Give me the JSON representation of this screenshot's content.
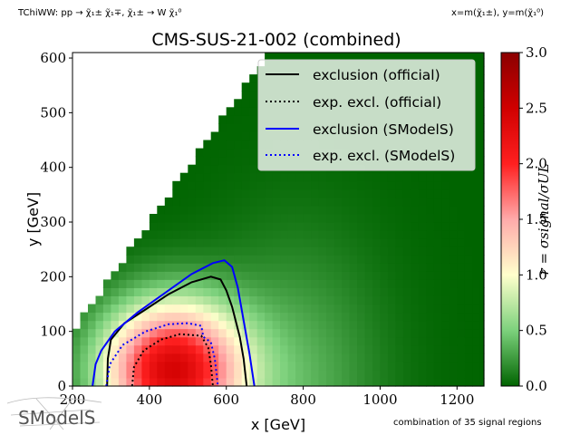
{
  "header": {
    "process": "TChiWW: pp → χ̃₁± χ̃₁∓, χ̃₁± → W χ̃₁⁰",
    "axes_def": "x=m(χ̃₁±), y=m(χ̃₁⁰)"
  },
  "footer": {
    "signal_regions": "combination of 35 signal regions",
    "logo_text": "SModelS"
  },
  "chart_data": {
    "type": "heatmap",
    "title": "CMS-SUS-21-002 (combined)",
    "xlabel": "x [GeV]",
    "ylabel": "y [GeV]",
    "xlim": [
      200,
      1270
    ],
    "ylim": [
      0,
      610
    ],
    "xticks": [
      "200",
      "400",
      "600",
      "800",
      "1000",
      "1200"
    ],
    "yticks": [
      "0",
      "100",
      "200",
      "300",
      "400",
      "500",
      "600"
    ],
    "colorbar": {
      "label": "r = σsignal/σUL",
      "range": [
        0.0,
        3.0
      ],
      "ticks": [
        "0.0",
        "0.5",
        "1.0",
        "1.5",
        "2.0",
        "2.5",
        "3.0"
      ],
      "colors": [
        "#006400",
        "#ffffcc",
        "#ff0000",
        "#8b0000"
      ]
    },
    "legend": {
      "placement": "top-right",
      "entries": [
        {
          "label": "exclusion (official)",
          "color": "#000000",
          "style": "solid"
        },
        {
          "label": "exp. excl. (official)",
          "color": "#000000",
          "style": "dotted"
        },
        {
          "label": "exclusion (SModelS)",
          "color": "#0000ff",
          "style": "solid"
        },
        {
          "label": "exp. excl. (SModelS)",
          "color": "#0000ff",
          "style": "dotted"
        }
      ]
    },
    "grid": false,
    "scan_region": {
      "x_min": 200,
      "x_max": 1270,
      "diagonal_y_offset": 100
    },
    "r_model": {
      "peak_x": 460,
      "peak_y": 30,
      "peak_r": 2.4
    },
    "contours": {
      "exclusion_official": [
        [
          290,
          0
        ],
        [
          292,
          50
        ],
        [
          300,
          85
        ],
        [
          335,
          115
        ],
        [
          390,
          140
        ],
        [
          450,
          168
        ],
        [
          510,
          190
        ],
        [
          560,
          200
        ],
        [
          585,
          195
        ],
        [
          600,
          175
        ],
        [
          615,
          145
        ],
        [
          635,
          90
        ],
        [
          645,
          50
        ],
        [
          653,
          0
        ]
      ],
      "exp_excl_official": [
        [
          355,
          0
        ],
        [
          360,
          35
        ],
        [
          385,
          65
        ],
        [
          430,
          85
        ],
        [
          480,
          95
        ],
        [
          535,
          92
        ],
        [
          553,
          70
        ],
        [
          560,
          40
        ],
        [
          565,
          0
        ]
      ],
      "exclusion_smodels": [
        [
          252,
          0
        ],
        [
          260,
          40
        ],
        [
          275,
          65
        ],
        [
          310,
          100
        ],
        [
          370,
          135
        ],
        [
          440,
          170
        ],
        [
          510,
          205
        ],
        [
          565,
          225
        ],
        [
          595,
          230
        ],
        [
          615,
          218
        ],
        [
          630,
          180
        ],
        [
          645,
          120
        ],
        [
          660,
          60
        ],
        [
          673,
          0
        ]
      ],
      "exp_excl_smodels": [
        [
          288,
          0
        ],
        [
          297,
          40
        ],
        [
          330,
          75
        ],
        [
          390,
          100
        ],
        [
          450,
          113
        ],
        [
          500,
          115
        ],
        [
          535,
          110
        ],
        [
          540,
          90
        ],
        [
          560,
          80
        ],
        [
          570,
          50
        ],
        [
          575,
          20
        ],
        [
          578,
          0
        ]
      ]
    }
  }
}
